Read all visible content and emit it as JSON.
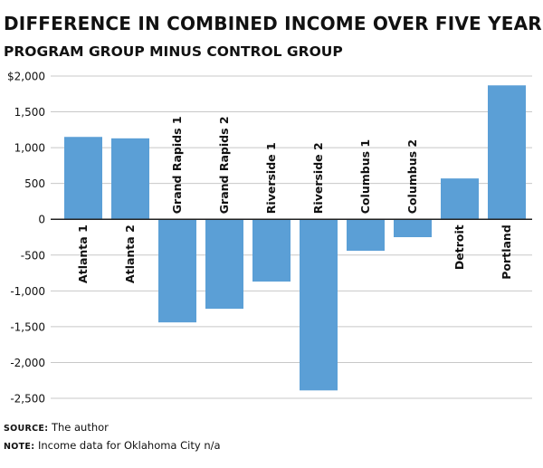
{
  "title": "DIFFERENCE IN COMBINED INCOME OVER FIVE YEARS",
  "subtitle": "PROGRAM GROUP MINUS CONTROL GROUP",
  "footnotes": {
    "source_key": "SOURCE:",
    "source_text": "The author",
    "note_key": "NOTE:",
    "note_text": "Income data for Oklahoma City n/a"
  },
  "colors": {
    "bar": "#5b9fd6",
    "gridline": "#c8c8c8",
    "zero_line": "#222222"
  },
  "chart_data": {
    "type": "bar",
    "title": "DIFFERENCE IN COMBINED INCOME OVER FIVE YEARS",
    "subtitle": "PROGRAM GROUP MINUS CONTROL GROUP",
    "categories": [
      "Atlanta 1",
      "Atlanta 2",
      "Grand Rapids 1",
      "Grand Rapids 2",
      "Riverside 1",
      "Riverside 2",
      "Columbus 1",
      "Columbus 2",
      "Detroit",
      "Portland"
    ],
    "values": [
      1150,
      1130,
      -1440,
      -1250,
      -870,
      -2390,
      -440,
      -250,
      570,
      1870
    ],
    "ylim": [
      -2500,
      2000
    ],
    "yticks": [
      2000,
      1500,
      1000,
      500,
      0,
      -500,
      -1000,
      -1500,
      -2000,
      -2500
    ],
    "ytick_labels": [
      "$2,000",
      "1,500",
      "1,000",
      "500",
      "0",
      "-500",
      "-1,000",
      "-1,500",
      "-2,000",
      "-2,500"
    ],
    "grid": true,
    "xlabel": "",
    "ylabel": ""
  }
}
